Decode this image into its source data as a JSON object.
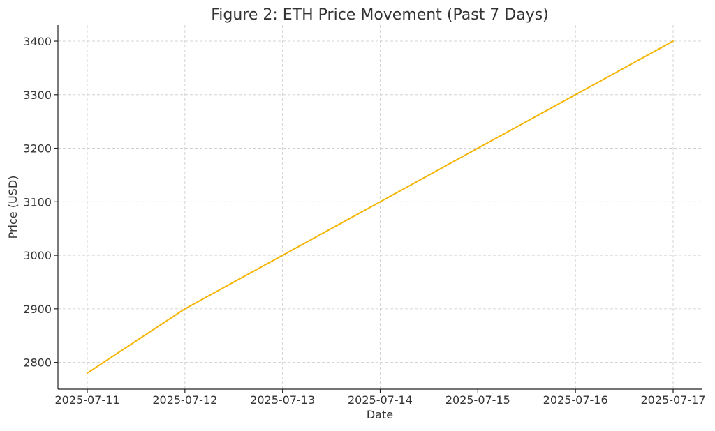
{
  "chart_data": {
    "type": "line",
    "title": "Figure 2: ETH Price Movement (Past 7 Days)",
    "xlabel": "Date",
    "ylabel": "Price (USD)",
    "categories": [
      "2025-07-11",
      "2025-07-12",
      "2025-07-13",
      "2025-07-14",
      "2025-07-15",
      "2025-07-16",
      "2025-07-17"
    ],
    "series": [
      {
        "values": [
          2780,
          2900,
          3000,
          3100,
          3200,
          3300,
          3400
        ],
        "color": "#f4b400"
      }
    ],
    "yticks": [
      2800,
      2900,
      3000,
      3100,
      3200,
      3300,
      3400
    ],
    "ylim": [
      2750,
      3430
    ],
    "grid": true,
    "legend": "none"
  }
}
